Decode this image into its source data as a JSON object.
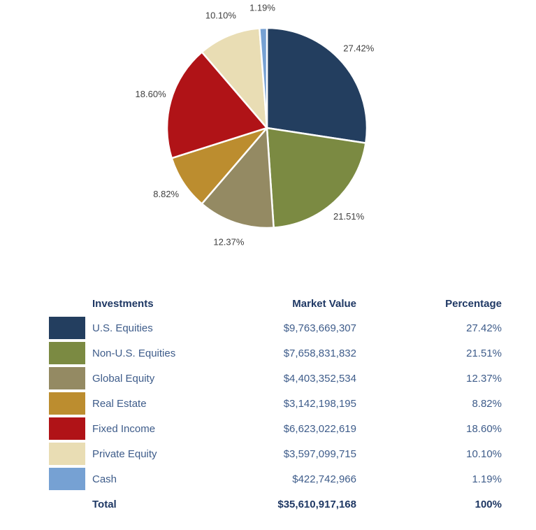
{
  "chart_data": {
    "type": "pie",
    "title": "",
    "start_angle_deg": 0,
    "direction": "clockwise",
    "labels_position": "outside",
    "label_color": "#404040",
    "slice_border_color": "#ffffff",
    "slices": [
      {
        "label": "U.S. Equities",
        "value": 27.42,
        "display": "27.42%",
        "color": "#233E5F"
      },
      {
        "label": "Non-U.S. Equities",
        "value": 21.51,
        "display": "21.51%",
        "color": "#7B8A42"
      },
      {
        "label": "Global Equity",
        "value": 12.37,
        "display": "12.37%",
        "color": "#948A63"
      },
      {
        "label": "Real Estate",
        "value": 8.82,
        "display": "8.82%",
        "color": "#BC8D2F"
      },
      {
        "label": "Fixed Income",
        "value": 18.6,
        "display": "18.60%",
        "color": "#B01317"
      },
      {
        "label": "Private Equity",
        "value": 10.1,
        "display": "10.10%",
        "color": "#E9DDB4"
      },
      {
        "label": "Cash",
        "value": 1.19,
        "display": "1.19%",
        "color": "#76A1D3"
      }
    ]
  },
  "table": {
    "headers": {
      "investments": "Investments",
      "market_value": "Market Value",
      "percentage": "Percentage"
    },
    "header_color": "#1F3864",
    "row_text_color": "#3E5C8A",
    "rows": [
      {
        "label": "U.S. Equities",
        "market_value": "$9,763,669,307",
        "percentage": "27.42%",
        "color": "#233E5F"
      },
      {
        "label": "Non-U.S. Equities",
        "market_value": "$7,658,831,832",
        "percentage": "21.51%",
        "color": "#7B8A42"
      },
      {
        "label": "Global Equity",
        "market_value": "$4,403,352,534",
        "percentage": "12.37%",
        "color": "#948A63"
      },
      {
        "label": "Real Estate",
        "market_value": "$3,142,198,195",
        "percentage": "8.82%",
        "color": "#BC8D2F"
      },
      {
        "label": "Fixed Income",
        "market_value": "$6,623,022,619",
        "percentage": "18.60%",
        "color": "#B01317"
      },
      {
        "label": "Private Equity",
        "market_value": "$3,597,099,715",
        "percentage": "10.10%",
        "color": "#E9DDB4"
      },
      {
        "label": "Cash",
        "market_value": "$422,742,966",
        "percentage": "1.19%",
        "color": "#76A1D3"
      }
    ],
    "total": {
      "label": "Total",
      "market_value": "$35,610,917,168",
      "percentage": "100%"
    }
  }
}
